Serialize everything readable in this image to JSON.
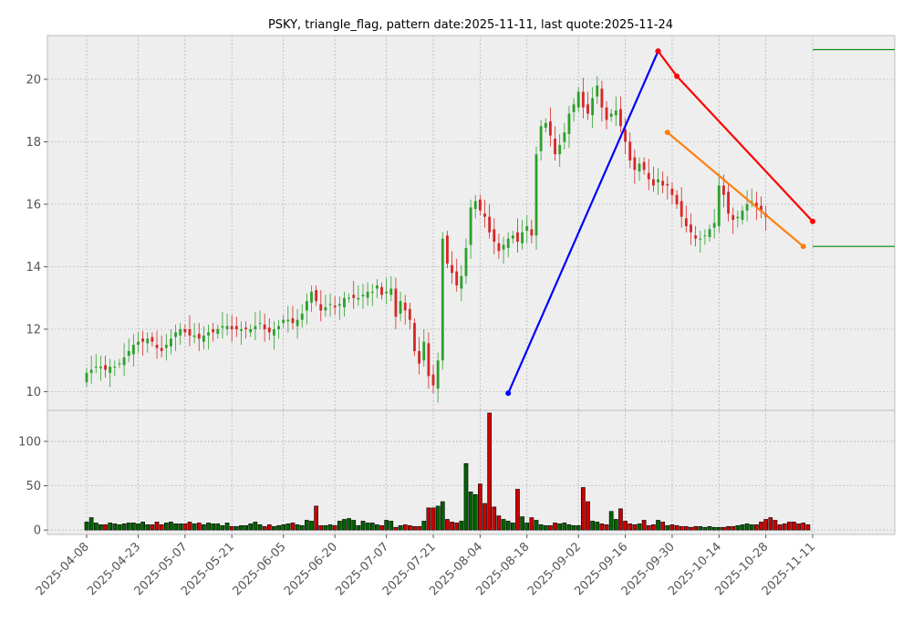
{
  "chart_data": {
    "type": "candlestick",
    "title": "PSKY, triangle_flag, pattern date:2025-11-11, last quote:2025-11-24",
    "xlabel": "",
    "ylabel": "",
    "grid": true,
    "x_ticks": [
      "2025-04-08",
      "2025-04-23",
      "2025-05-07",
      "2025-05-21",
      "2025-06-05",
      "2025-06-20",
      "2025-07-07",
      "2025-07-21",
      "2025-08-04",
      "2025-08-18",
      "2025-09-02",
      "2025-09-16",
      "2025-09-30",
      "2025-10-14",
      "2025-10-28",
      "2025-11-11"
    ],
    "price_panel": {
      "ylim": [
        9.4,
        21.4
      ],
      "y_ticks": [
        10,
        12,
        14,
        16,
        18,
        20
      ]
    },
    "volume_panel": {
      "ylim": [
        -5,
        135
      ],
      "y_ticks": [
        0,
        50,
        100
      ]
    },
    "up_color": "#2ca02c",
    "down_color": "#d62728",
    "ohlc_seed": [
      10.6,
      10.7,
      10.8,
      10.8,
      10.7,
      10.8,
      10.8,
      10.9,
      11.1,
      11.3,
      11.5,
      11.6,
      11.6,
      11.7,
      11.6,
      11.4,
      11.3,
      11.5,
      11.7,
      11.9,
      12.0,
      11.9,
      11.8,
      11.8,
      11.7,
      11.8,
      11.9,
      11.9,
      12.0,
      12.1,
      12.1,
      12.0,
      12.0,
      12.0,
      12.0,
      12.0,
      12.1,
      12.2,
      12.0,
      11.9,
      12.0,
      12.1,
      12.3,
      12.3,
      12.2,
      12.3,
      12.5,
      12.9,
      13.2,
      12.9,
      12.6,
      12.7,
      12.8,
      12.7,
      12.8,
      13.0,
      13.0,
      13.0,
      13.0,
      13.1,
      13.2,
      13.2,
      13.4,
      13.1,
      13.2,
      13.3,
      12.4,
      12.9,
      12.6,
      12.3,
      11.3,
      10.9,
      11.6,
      10.5,
      10.2,
      11.0,
      14.9,
      14.1,
      13.8,
      13.4,
      13.7,
      14.6,
      15.9,
      16.1,
      15.8,
      15.6,
      15.1,
      14.8,
      14.5,
      14.7,
      14.9,
      15.0,
      14.8,
      15.1,
      15.3,
      15.0,
      17.6,
      18.5,
      18.6,
      18.2,
      17.6,
      17.9,
      18.3,
      18.9,
      19.2,
      19.6,
      19.1,
      18.9,
      19.4,
      19.8,
      19.1,
      18.7,
      18.9,
      19.0,
      18.5,
      18.0,
      17.4,
      17.1,
      17.3,
      17.1,
      16.8,
      16.6,
      16.8,
      16.6,
      16.6,
      16.3,
      16.0,
      15.6,
      15.3,
      15.1,
      14.9,
      14.9,
      15.0,
      15.2,
      15.4,
      16.6,
      16.3,
      15.7,
      15.5,
      15.6,
      15.8,
      16.0,
      16.1,
      15.9,
      15.8,
      15.6
    ],
    "volume_seed": [
      9,
      14,
      8,
      6,
      6,
      8,
      7,
      6,
      7,
      8,
      8,
      7,
      9,
      6,
      6,
      9,
      6,
      8,
      9,
      7,
      7,
      7,
      9,
      7,
      8,
      6,
      8,
      7,
      7,
      5,
      8,
      4,
      4,
      5,
      5,
      7,
      9,
      6,
      4,
      6,
      4,
      5,
      6,
      7,
      8,
      6,
      5,
      11,
      10,
      27,
      5,
      5,
      6,
      5,
      10,
      12,
      13,
      11,
      5,
      10,
      8,
      8,
      6,
      5,
      11,
      10,
      3,
      5,
      6,
      5,
      4,
      4,
      10,
      25,
      25,
      27,
      32,
      12,
      9,
      8,
      10,
      75,
      43,
      40,
      52,
      30,
      132,
      26,
      16,
      12,
      10,
      8,
      46,
      15,
      8,
      14,
      11,
      6,
      5,
      5,
      8,
      7,
      8,
      6,
      5,
      5,
      48,
      32,
      10,
      9,
      7,
      6,
      21,
      12,
      24,
      10,
      7,
      6,
      7,
      11,
      5,
      6,
      11,
      9,
      5,
      6,
      5,
      4,
      4,
      3,
      4,
      4,
      3,
      4,
      3,
      3,
      3,
      4,
      4,
      5,
      6,
      7,
      6,
      6,
      9,
      12,
      14,
      11,
      6,
      7,
      9,
      9,
      7,
      8,
      6
    ],
    "overlays": [
      {
        "name": "pole",
        "color": "#0000ff",
        "points": [
          [
            "2025-08-12",
            9.95
          ],
          [
            "2025-09-25",
            20.9
          ]
        ]
      },
      {
        "name": "upper-line",
        "color": "#ff0000",
        "points": [
          [
            "2025-09-25",
            20.9
          ],
          [
            "2025-10-01",
            20.1
          ],
          [
            "2025-11-11",
            15.45
          ]
        ]
      },
      {
        "name": "lower-line",
        "color": "#ff7f0e",
        "points": [
          [
            "2025-09-29",
            18.3
          ],
          [
            "2025-11-07",
            14.65
          ]
        ]
      }
    ],
    "hlines": [
      {
        "name": "target-level",
        "color": "#008000",
        "y": 20.95,
        "x_from": "2025-11-11"
      },
      {
        "name": "stop-level",
        "color": "#008000",
        "y": 14.65,
        "x_from": "2025-11-11"
      }
    ]
  }
}
